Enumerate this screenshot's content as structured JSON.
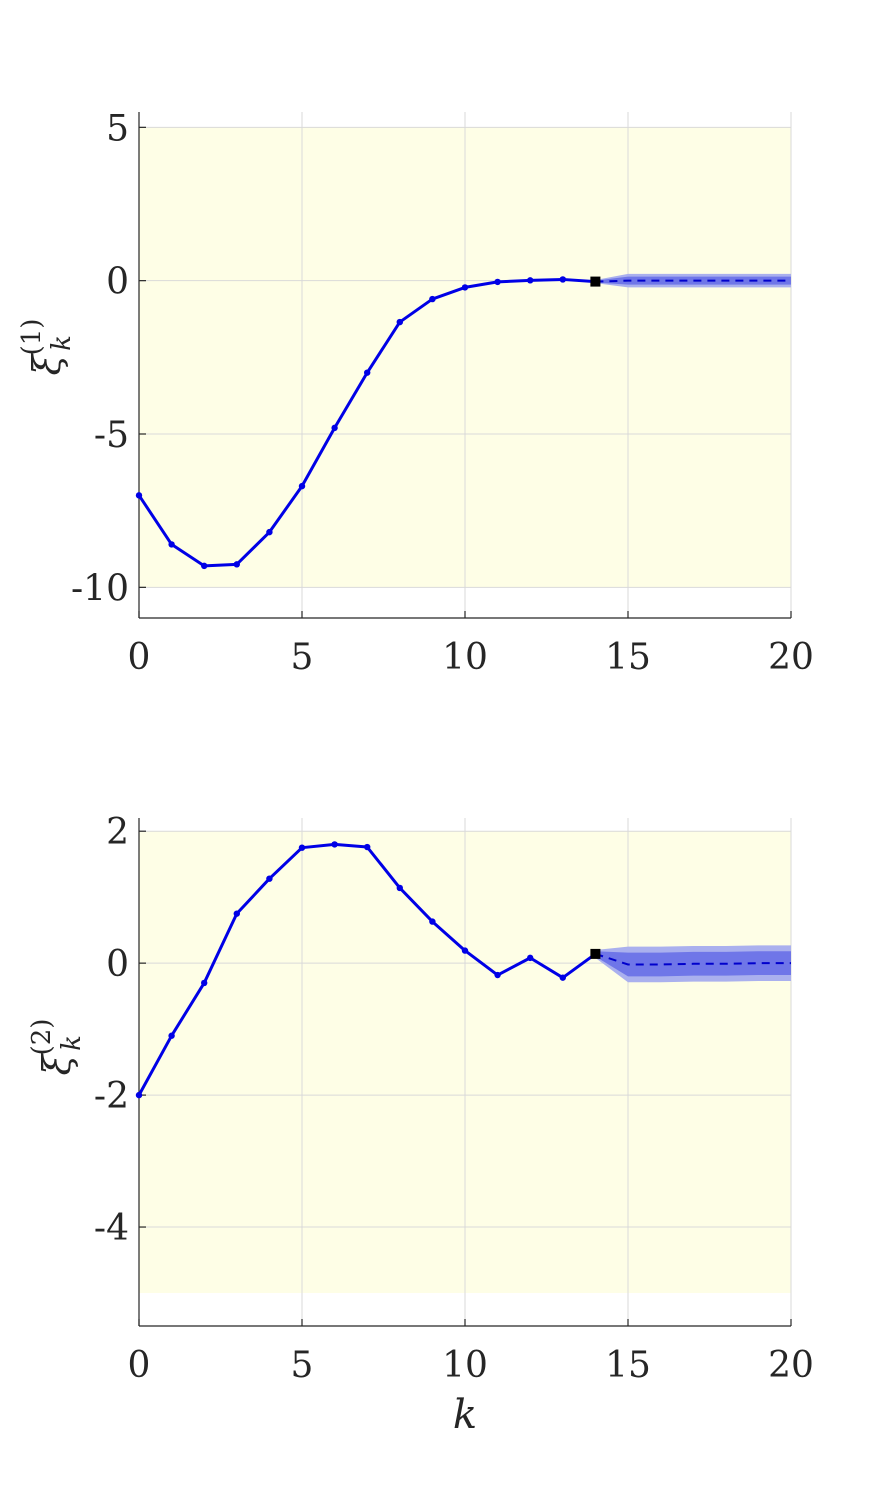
{
  "chart_data": [
    {
      "type": "line",
      "xlabel": "",
      "ylabel": "ξ",
      "ylabel_sub": "k",
      "ylabel_sup": "(1)",
      "xlim": [
        0,
        20
      ],
      "ylim": [
        -11,
        5.5
      ],
      "xticks": [
        0,
        5,
        10,
        15,
        20
      ],
      "xtick_labels": [
        "0",
        "5",
        "10",
        "15",
        "20"
      ],
      "yticks": [
        5,
        0,
        -5,
        -10
      ],
      "ytick_labels": [
        "5",
        "0",
        "-5",
        "-10"
      ],
      "grid": true,
      "constraint_band": [
        -10,
        5
      ],
      "series": [
        {
          "x": [
            0,
            1,
            2,
            3,
            4,
            5,
            6,
            7,
            8,
            9,
            10,
            11,
            12,
            13,
            14
          ],
          "values": [
            -7.0,
            -8.6,
            -9.3,
            -9.25,
            -8.2,
            -6.7,
            -4.8,
            -3.0,
            -1.35,
            -0.6,
            -0.22,
            -0.04,
            0.01,
            0.04,
            -0.03
          ]
        }
      ],
      "current": {
        "x": 14,
        "value": -0.03
      },
      "forecast": {
        "x": [
          14,
          15,
          16,
          17,
          18,
          19,
          20
        ],
        "values": [
          -0.03,
          0.0,
          0.0,
          0.0,
          0.0,
          0.0,
          0.0
        ],
        "band_outer": [
          0.05,
          0.22,
          0.22,
          0.22,
          0.22,
          0.22,
          0.22
        ],
        "band_inner": [
          0.03,
          0.13,
          0.13,
          0.13,
          0.13,
          0.13,
          0.13
        ]
      },
      "colors": {
        "series": "#0000e6",
        "band_outer": "#aab0ee",
        "band_inner": "#6f76e8",
        "constraint": "#fefee6",
        "marker": "#000000"
      }
    },
    {
      "type": "line",
      "xlabel": "k",
      "ylabel": "ξ",
      "ylabel_sub": "k",
      "ylabel_sup": "(2)",
      "xlim": [
        0,
        20
      ],
      "ylim": [
        -5.5,
        2.2
      ],
      "xticks": [
        0,
        5,
        10,
        15,
        20
      ],
      "xtick_labels": [
        "0",
        "5",
        "10",
        "15",
        "20"
      ],
      "yticks": [
        2,
        0,
        -2,
        -4
      ],
      "ytick_labels": [
        "2",
        "0",
        "-2",
        "-4"
      ],
      "grid": true,
      "constraint_band": [
        -5,
        2
      ],
      "series": [
        {
          "x": [
            0,
            1,
            2,
            3,
            4,
            5,
            6,
            7,
            8,
            9,
            10,
            11,
            12,
            13,
            14
          ],
          "values": [
            -2.0,
            -1.1,
            -0.3,
            0.75,
            1.28,
            1.75,
            1.8,
            1.76,
            1.14,
            0.63,
            0.19,
            -0.18,
            0.08,
            -0.22,
            0.14
          ]
        }
      ],
      "current": {
        "x": 14,
        "value": 0.14
      },
      "forecast": {
        "x": [
          14,
          15,
          16,
          17,
          18,
          19,
          20
        ],
        "values": [
          0.14,
          -0.02,
          -0.02,
          -0.01,
          -0.01,
          0.0,
          0.0
        ],
        "band_outer": [
          0.06,
          0.27,
          0.27,
          0.27,
          0.27,
          0.27,
          0.27
        ],
        "band_inner": [
          0.04,
          0.18,
          0.18,
          0.18,
          0.18,
          0.18,
          0.18
        ]
      },
      "colors": {
        "series": "#0000e6",
        "band_outer": "#aab0ee",
        "band_inner": "#6f76e8",
        "constraint": "#fefee6",
        "marker": "#000000"
      }
    }
  ]
}
